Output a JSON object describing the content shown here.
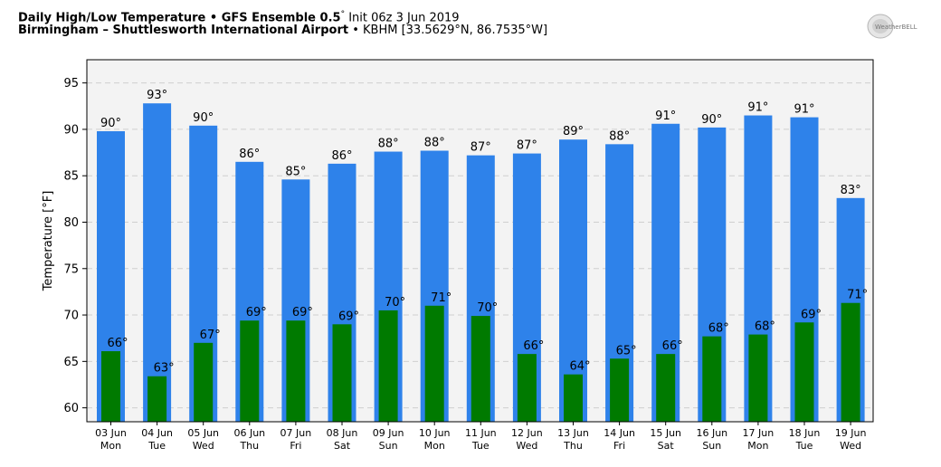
{
  "header": {
    "title_bold": "Daily High/Low Temperature • GFS Ensemble 0.5",
    "title_deg": "°",
    "title_init": " Init 06z 3 Jun 2019",
    "subtitle_bold": "Birmingham – Shuttlesworth International Airport",
    "subtitle_rest": " • KBHM [33.5629°N, 86.7535°W]",
    "logo_text": "WeatherBELL"
  },
  "colors": {
    "high_bar": "#2e82ea",
    "low_bar": "#007a00",
    "plot_bg": "#f3f3f3",
    "grid": "#cfcfcf"
  },
  "chart_data": {
    "type": "bar",
    "ylabel": "Temperature [°F]",
    "ylim": [
      58.5,
      97.5
    ],
    "yticks": [
      60,
      65,
      70,
      75,
      80,
      85,
      90,
      95
    ],
    "grid": true,
    "categories": [
      {
        "date": "03 Jun",
        "day": "Mon"
      },
      {
        "date": "04 Jun",
        "day": "Tue"
      },
      {
        "date": "05 Jun",
        "day": "Wed"
      },
      {
        "date": "06 Jun",
        "day": "Thu"
      },
      {
        "date": "07 Jun",
        "day": "Fri"
      },
      {
        "date": "08 Jun",
        "day": "Sat"
      },
      {
        "date": "09 Jun",
        "day": "Sun"
      },
      {
        "date": "10 Jun",
        "day": "Mon"
      },
      {
        "date": "11 Jun",
        "day": "Tue"
      },
      {
        "date": "12 Jun",
        "day": "Wed"
      },
      {
        "date": "13 Jun",
        "day": "Thu"
      },
      {
        "date": "14 Jun",
        "day": "Fri"
      },
      {
        "date": "15 Jun",
        "day": "Sat"
      },
      {
        "date": "16 Jun",
        "day": "Sun"
      },
      {
        "date": "17 Jun",
        "day": "Mon"
      },
      {
        "date": "18 Jun",
        "day": "Tue"
      },
      {
        "date": "19 Jun",
        "day": "Wed"
      }
    ],
    "series": [
      {
        "values": [
          89.8,
          92.8,
          90.4,
          86.5,
          84.6,
          86.3,
          87.6,
          87.7,
          87.2,
          87.4,
          88.9,
          88.4,
          90.6,
          90.2,
          91.5,
          91.3,
          82.6
        ],
        "labels": [
          "90°",
          "93°",
          "90°",
          "86°",
          "85°",
          "86°",
          "88°",
          "88°",
          "87°",
          "87°",
          "89°",
          "88°",
          "91°",
          "90°",
          "91°",
          "91°",
          "83°"
        ]
      },
      {
        "values": [
          66.1,
          63.4,
          67.0,
          69.4,
          69.4,
          69.0,
          70.5,
          71.0,
          69.9,
          65.8,
          63.6,
          65.3,
          65.8,
          67.7,
          67.9,
          69.2,
          71.3
        ],
        "labels": [
          "66°",
          "63°",
          "67°",
          "69°",
          "69°",
          "69°",
          "70°",
          "71°",
          "70°",
          "66°",
          "64°",
          "65°",
          "66°",
          "68°",
          "68°",
          "69°",
          "71°"
        ]
      }
    ]
  }
}
